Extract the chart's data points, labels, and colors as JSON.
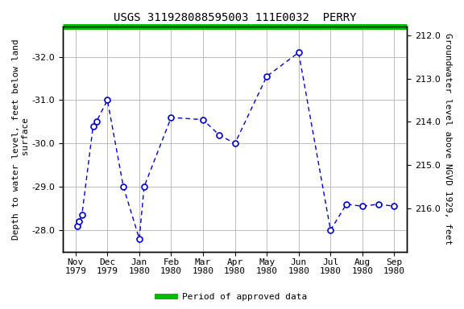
{
  "title": "USGS 311928088595003 111E0032  PERRY",
  "ylabel_left": "Depth to water level, feet below land\n surface",
  "ylabel_right": "Groundwater level above NGVD 1929, feet",
  "xlabel_ticks": [
    "Nov\n1979",
    "Dec\n1979",
    "Jan\n1980",
    "Feb\n1980",
    "Mar\n1980",
    "Apr\n1980",
    "May\n1980",
    "Jun\n1980",
    "Jul\n1980",
    "Aug\n1980",
    "Sep\n1980"
  ],
  "x_positions": [
    0,
    1,
    2,
    3,
    4,
    5,
    6,
    7,
    8,
    9,
    10
  ],
  "data_x": [
    0.05,
    0.1,
    0.2,
    0.55,
    0.65,
    1.0,
    1.5,
    2.0,
    2.15,
    3.0,
    4.0,
    4.5,
    5.0,
    6.0,
    7.0,
    8.0,
    8.5,
    9.0,
    9.5,
    10.0
  ],
  "data_y": [
    -28.1,
    -28.2,
    -28.35,
    -30.4,
    -30.5,
    -31.0,
    -29.0,
    -27.8,
    -29.0,
    -30.6,
    -30.55,
    -30.2,
    -30.0,
    -31.55,
    -32.1,
    -28.0,
    -28.6,
    -28.55,
    -28.6,
    -28.55
  ],
  "ylim_left": [
    -27.5,
    -32.7
  ],
  "ylim_right": [
    217.0,
    211.8
  ],
  "yticks_left": [
    -28.0,
    -29.0,
    -30.0,
    -31.0,
    -32.0
  ],
  "yticks_right": [
    216.0,
    215.0,
    214.0,
    213.0,
    212.0
  ],
  "line_color": "#0000CC",
  "marker_color": "#0000CC",
  "marker_face": "white",
  "green_bar_color": "#00BB00",
  "background_color": "#ffffff",
  "grid_color": "#bbbbbb",
  "title_fontsize": 10,
  "axis_label_fontsize": 8,
  "tick_fontsize": 8,
  "legend_label": "Period of approved data"
}
